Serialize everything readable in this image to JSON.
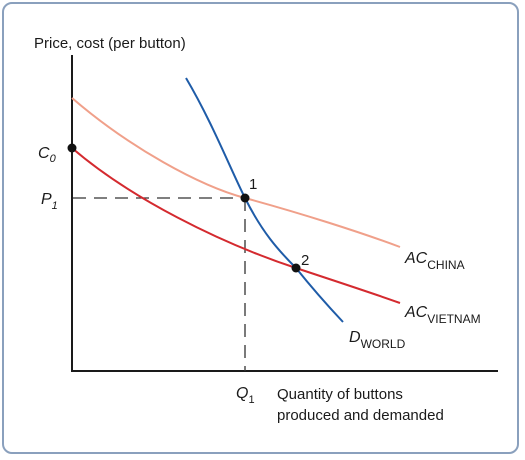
{
  "y_axis_label": "Price, cost (per button)",
  "x_axis_label_line1": "Quantity of buttons",
  "x_axis_label_line2": "produced and demanded",
  "labels": {
    "c0_main": "C",
    "c0_sub": "0",
    "p1_main": "P",
    "p1_sub": "1",
    "q1_main": "Q",
    "q1_sub": "1",
    "point1": "1",
    "point2": "2",
    "ac_china_main": "AC",
    "ac_china_sub": "CHINA",
    "ac_vietnam_main": "AC",
    "ac_vietnam_sub": "VIETNAM",
    "d_world_main": "D",
    "d_world_sub": "WORLD"
  },
  "colors": {
    "axis": "#1a1a1a",
    "ac_china": "#f0a08a",
    "ac_vietnam": "#d42a2f",
    "d_world": "#1f5ca8",
    "dashed": "#333333",
    "point": "#111111",
    "frame": "#8aa0bd"
  }
}
